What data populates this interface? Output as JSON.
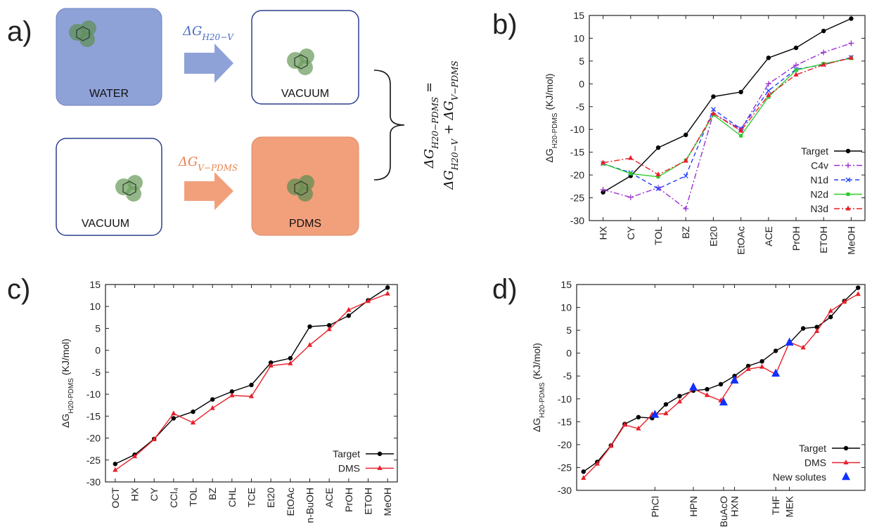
{
  "diagram": {
    "panel": "a)",
    "boxes": [
      "WATER",
      "VACUUM",
      "VACUUM",
      "PDMS"
    ],
    "arrow1": {
      "symbol": "ΔG",
      "sub": "H20−V"
    },
    "arrow2": {
      "symbol": "ΔG",
      "sub": "V−PDMS"
    },
    "equation": {
      "lhs": {
        "symbol": "ΔG",
        "sub": "H20−PDMS"
      },
      "eq": "=",
      "term1": {
        "symbol": "ΔG",
        "sub": "H20−V"
      },
      "plus": "+",
      "term2": {
        "symbol": "ΔG",
        "sub": "V−PDMS"
      }
    }
  },
  "chart_data": [
    {
      "type": "line",
      "panel": "b)",
      "ylabel": {
        "symbol": "ΔG",
        "sub": "H20-PDMS",
        "unit": "(KJ/mol)"
      },
      "categories": [
        "HX",
        "CY",
        "TOL",
        "BZ",
        "Et20",
        "EtOAc",
        "ACE",
        "PrOH",
        "ETOH",
        "MeOH"
      ],
      "ylim": [
        -30,
        15
      ],
      "yticks": [
        -30,
        -25,
        -20,
        -15,
        -10,
        -5,
        0,
        5,
        10,
        15
      ],
      "legend": "lower right",
      "series": [
        {
          "name": "Target",
          "color": "#000000",
          "marker": "circle",
          "dash": "none",
          "values": [
            -23.8,
            -20.2,
            -14,
            -11.2,
            -2.8,
            -1.8,
            5.7,
            7.9,
            11.6,
            14.3
          ]
        },
        {
          "name": "C4v",
          "color": "#9b30d0",
          "marker": "plus",
          "dash": "8,3,2,3",
          "values": [
            -23.2,
            -24.9,
            -22.8,
            -27.4,
            -6.5,
            -10,
            0,
            4.1,
            6.9,
            8.9
          ]
        },
        {
          "name": "N1d",
          "color": "#2040ff",
          "marker": "cross",
          "dash": "6,4",
          "values": [
            -17.5,
            -19.5,
            -23,
            -20.2,
            -5.6,
            -9.9,
            -1.5,
            3.2,
            4.2,
            5.8
          ]
        },
        {
          "name": "N2d",
          "color": "#2ecc2e",
          "marker": "square",
          "dash": "none",
          "values": [
            -17.5,
            -19.7,
            -20.4,
            -16.8,
            -6.8,
            -11.4,
            -2.9,
            3,
            4.4,
            5.6
          ]
        },
        {
          "name": "N3d",
          "color": "#e8202a",
          "marker": "triangle",
          "dash": "8,3,2,3",
          "values": [
            -17.3,
            -16.3,
            -19.9,
            -16.9,
            -6.5,
            -10.3,
            -2.5,
            2,
            4.2,
            5.7
          ]
        }
      ]
    },
    {
      "type": "line",
      "panel": "c)",
      "ylabel": {
        "symbol": "ΔG",
        "sub": "H20-PDMS",
        "unit": "(KJ/mol)"
      },
      "categories": [
        "OCT",
        "HX",
        "CY",
        "CCl₄",
        "TOL",
        "BZ",
        "CHL",
        "TCE",
        "Et20",
        "EtOAc",
        "n-BuOH",
        "ACE",
        "PrOH",
        "ETOH",
        "MeOH"
      ],
      "ylim": [
        -30,
        15
      ],
      "yticks": [
        -30,
        -25,
        -20,
        -15,
        -10,
        -5,
        0,
        5,
        10,
        15
      ],
      "legend": "lower right",
      "series": [
        {
          "name": "Target",
          "color": "#000000",
          "marker": "circle",
          "dash": "none",
          "values": [
            -25.9,
            -23.8,
            -20.2,
            -15.5,
            -14,
            -11.2,
            -9.4,
            -7.9,
            -2.8,
            -1.8,
            5.4,
            5.7,
            7.9,
            11.4,
            14.3
          ]
        },
        {
          "name": "DMS",
          "color": "#e8202a",
          "marker": "triangle",
          "dash": "none",
          "values": [
            -27.3,
            -24.2,
            -20.3,
            -14.4,
            -16.5,
            -13.2,
            -10.3,
            -10.5,
            -3.5,
            -3,
            1.2,
            4.8,
            9.2,
            11.2,
            12.9
          ]
        }
      ]
    },
    {
      "type": "line",
      "panel": "d)",
      "ylabel": {
        "symbol": "ΔG",
        "sub": "H20-PDMS",
        "unit": "(KJ/mol)"
      },
      "xlim": [
        -0.5,
        20.5
      ],
      "xticks": [
        {
          "value": 5.2,
          "label": "PhCl"
        },
        {
          "value": 8,
          "label": "HPN"
        },
        {
          "value": 10.2,
          "label": "BuAcO"
        },
        {
          "value": 11,
          "label": "HXN"
        },
        {
          "value": 14,
          "label": "THF"
        },
        {
          "value": 15,
          "label": "MEK"
        }
      ],
      "ylim": [
        -30,
        15
      ],
      "yticks": [
        -30,
        -25,
        -20,
        -15,
        -10,
        -5,
        0,
        5,
        10,
        15
      ],
      "legend": "lower right",
      "series": [
        {
          "name": "Target",
          "color": "#000000",
          "marker": "circle",
          "dash": "none",
          "line": true,
          "x": [
            0,
            1,
            2,
            3,
            4,
            5,
            6,
            7,
            8,
            9,
            10,
            11,
            12,
            13,
            14,
            15,
            16,
            17,
            18,
            19,
            20
          ],
          "values": [
            -25.9,
            -23.8,
            -20.2,
            -15.5,
            -14,
            -14.2,
            -11.2,
            -9.4,
            -8.2,
            -7.9,
            -6.8,
            -5,
            -2.8,
            -1.8,
            0.5,
            2.2,
            5.4,
            5.7,
            7.9,
            11.4,
            14.3
          ]
        },
        {
          "name": "DMS",
          "color": "#e8202a",
          "marker": "triangle",
          "dash": "none",
          "line": true,
          "x": [
            0,
            1,
            2,
            3,
            4,
            5,
            6,
            7,
            8,
            9,
            10,
            11,
            12,
            13,
            14,
            15,
            16,
            17,
            18,
            19,
            20
          ],
          "values": [
            -27.3,
            -24.2,
            -20.3,
            -15.7,
            -16.5,
            -13.4,
            -13.2,
            -10.6,
            -7.8,
            -9.2,
            -10.4,
            -5.8,
            -3.5,
            -3,
            -4.6,
            2.4,
            1.2,
            4.8,
            9.2,
            11.2,
            12.9
          ]
        },
        {
          "name": "New solutes",
          "color": "#1030ff",
          "marker": "big-triangle",
          "dash": "none",
          "line": false,
          "x": [
            5.2,
            8,
            10.2,
            11,
            14,
            15
          ],
          "values": [
            -13.5,
            -7.5,
            -10.8,
            -6,
            -4.5,
            2.3
          ]
        }
      ]
    }
  ]
}
